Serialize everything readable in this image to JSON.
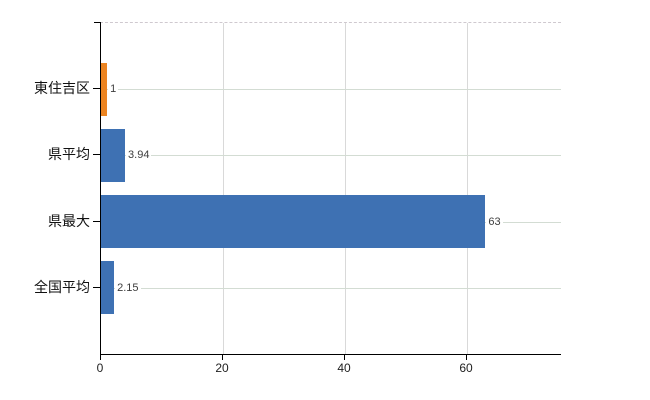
{
  "chart_data": {
    "type": "bar",
    "orientation": "horizontal",
    "title": "",
    "xlabel": "",
    "ylabel": "",
    "categories": [
      "東住吉区",
      "県平均",
      "県最大",
      "全国平均"
    ],
    "values": [
      1,
      3.94,
      63,
      2.15
    ],
    "value_labels": [
      "1",
      "3.94",
      "63",
      "2.15"
    ],
    "bar_colors": [
      "#EC8421",
      "#3E71B3",
      "#3E71B3",
      "#3E71B3"
    ],
    "x_ticks": [
      0,
      20,
      40,
      60
    ],
    "x_tick_labels": [
      "0",
      "20",
      "40",
      "60"
    ],
    "xlim": [
      0,
      75.4
    ],
    "legend": "none",
    "grid": {
      "vertical_gridlines": true,
      "category_row_lines": true,
      "gridline_color": "#d9d9d9",
      "row_line_color": "#d3dcd3",
      "top_border_style": "dashed"
    }
  },
  "colors": {
    "background": "#ffffff",
    "axis": "#000000",
    "bar_blue": "#3E71B3",
    "bar_orange": "#EC8421",
    "value_label_text": "#3d3d3d",
    "category_label_text": "#111111",
    "tick_label_text": "#222222"
  }
}
